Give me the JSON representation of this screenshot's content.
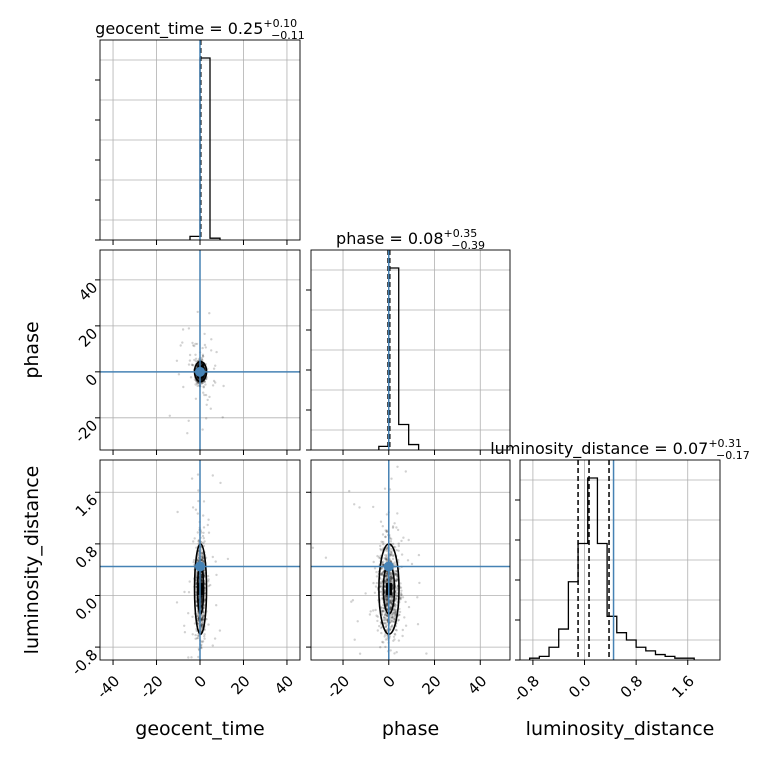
{
  "chart_data": {
    "type": "corner",
    "parameters": [
      "geocent_time",
      "phase",
      "luminosity_distance"
    ],
    "truths": [
      0.0,
      0.0,
      0.45
    ],
    "truth_color": "#4682b4",
    "line_color": "#000000",
    "grid_color": "#b0b0b0",
    "grid": true,
    "ranges": {
      "geocent_time": [
        -46,
        46
      ],
      "phase": [
        -34,
        53
      ],
      "luminosity_distance": [
        -1.0,
        2.1
      ]
    },
    "ticks": {
      "geocent_time": [
        "-40",
        "-20",
        "0",
        "20",
        "40"
      ],
      "phase": [
        "-20",
        "0",
        "20",
        "40"
      ],
      "luminosity_distance": [
        "-0.8",
        "0.0",
        "0.8",
        "1.6"
      ]
    },
    "axis_labels": {
      "geocent_time": "geocent_time",
      "phase": "phase",
      "luminosity_distance": "luminosity_distance"
    },
    "titles": [
      {
        "param": "geocent_time",
        "text": "geocent_time = 0.25",
        "plus": "+0.10",
        "minus": "−0.11"
      },
      {
        "param": "phase",
        "text": "phase = 0.08",
        "plus": "+0.35",
        "minus": "−0.39"
      },
      {
        "param": "luminosity_distance",
        "text": "luminosity_distance = 0.07",
        "plus": "+0.31",
        "minus": "−0.17"
      }
    ],
    "histograms": {
      "geocent_time": {
        "edges": [
          -4.6,
          0.0,
          4.6,
          9.2
        ],
        "counts": [
          0.02,
          1.0,
          0.01
        ],
        "quantile_lines": [
          0.14,
          0.25,
          0.35
        ]
      },
      "phase": {
        "edges": [
          -4.35,
          0.0,
          4.35,
          8.7,
          13.05
        ],
        "counts": [
          0.02,
          1.0,
          0.14,
          0.03
        ],
        "quantile_lines": [
          -0.31,
          0.08,
          0.43
        ]
      },
      "luminosity_distance": {
        "edges": [
          -0.85,
          -0.7,
          -0.55,
          -0.4,
          -0.25,
          -0.1,
          0.05,
          0.2,
          0.35,
          0.5,
          0.65,
          0.8,
          0.95,
          1.1,
          1.25,
          1.4,
          1.55,
          1.7
        ],
        "counts": [
          0.01,
          0.02,
          0.07,
          0.17,
          0.43,
          0.64,
          1.0,
          0.64,
          0.24,
          0.15,
          0.11,
          0.07,
          0.05,
          0.03,
          0.02,
          0.01,
          0.01
        ],
        "quantile_lines": [
          -0.1,
          0.07,
          0.38
        ]
      }
    }
  }
}
